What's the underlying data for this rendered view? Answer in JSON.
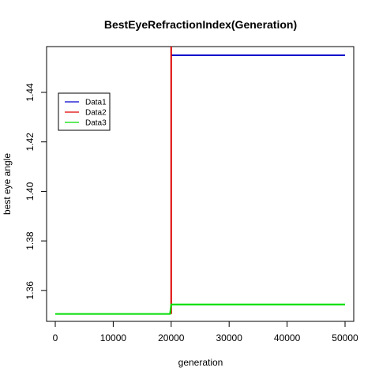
{
  "chart_data": {
    "type": "line",
    "title": "BestEyeRefractionIndex(Generation)",
    "xlabel": "generation",
    "ylabel": "best eye angle",
    "xlim": [
      -1500,
      51500
    ],
    "ylim": [
      1.3475,
      1.4585
    ],
    "xticks": [
      0,
      10000,
      20000,
      30000,
      40000,
      50000
    ],
    "xtick_labels": [
      "0",
      "10000",
      "20000",
      "30000",
      "40000",
      "50000"
    ],
    "yticks": [
      1.36,
      1.38,
      1.4,
      1.42,
      1.44
    ],
    "ytick_labels": [
      "1.36",
      "1.38",
      "1.40",
      "1.42",
      "1.44"
    ],
    "grid": false,
    "legend_position": "top-left",
    "series": [
      {
        "name": "Data1",
        "color": "#0000cc",
        "x": [
          20000,
          50000
        ],
        "y": [
          1.455,
          1.455
        ]
      },
      {
        "name": "Data2",
        "color": "#dd0000",
        "x": [
          20000,
          20000
        ],
        "y": [
          1.3505,
          1.4585
        ]
      },
      {
        "name": "Data3",
        "color": "#00dd00",
        "x": [
          0,
          19800,
          20000,
          50000
        ],
        "y": [
          1.3505,
          1.3505,
          1.3543,
          1.3543
        ]
      }
    ]
  }
}
